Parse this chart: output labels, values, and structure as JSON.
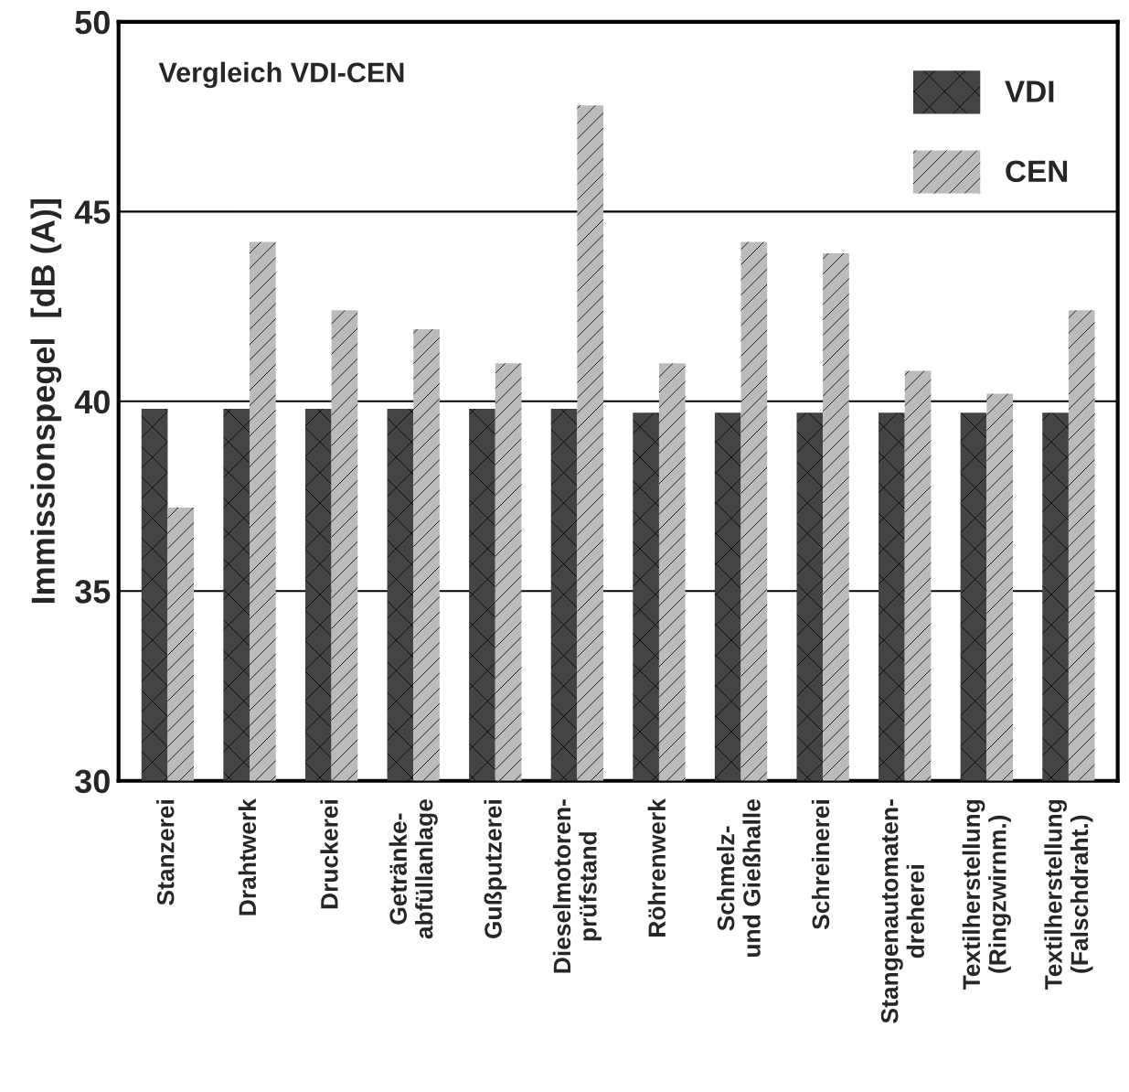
{
  "chart_data": {
    "type": "bar",
    "title": "Vergleich VDI-CEN",
    "ylabel": "Immissionspegel  [dB (A)]",
    "categories": [
      "Stanzerei",
      "Drahtwerk",
      "Druckerei",
      "Getränke-\nabfüllanlage",
      "Gußputzerei",
      "Dieselmotoren-\nprüfstand",
      "Röhrenwerk",
      "Schmelz-\nund Gießhalle",
      "Schreinerei",
      "Stangenautomaten-\ndreherei",
      "Textilherstellung\n(Ringzwirnm.)",
      "Textilherstellung\n(Falschdraht.)"
    ],
    "series": [
      {
        "name": "VDI",
        "color": "#444444",
        "values": [
          39.8,
          39.8,
          39.8,
          39.8,
          39.8,
          39.8,
          39.7,
          39.7,
          39.7,
          39.7,
          39.7,
          39.7
        ]
      },
      {
        "name": "CEN",
        "color": "#bbbbbb",
        "values": [
          37.2,
          44.2,
          42.4,
          41.9,
          41.0,
          47.8,
          41.0,
          44.2,
          43.9,
          40.8,
          40.2,
          42.4
        ]
      }
    ],
    "ylim": [
      30,
      50
    ],
    "yticks": [
      30,
      35,
      40,
      45,
      50
    ],
    "grid": "y",
    "legend": "top right"
  }
}
